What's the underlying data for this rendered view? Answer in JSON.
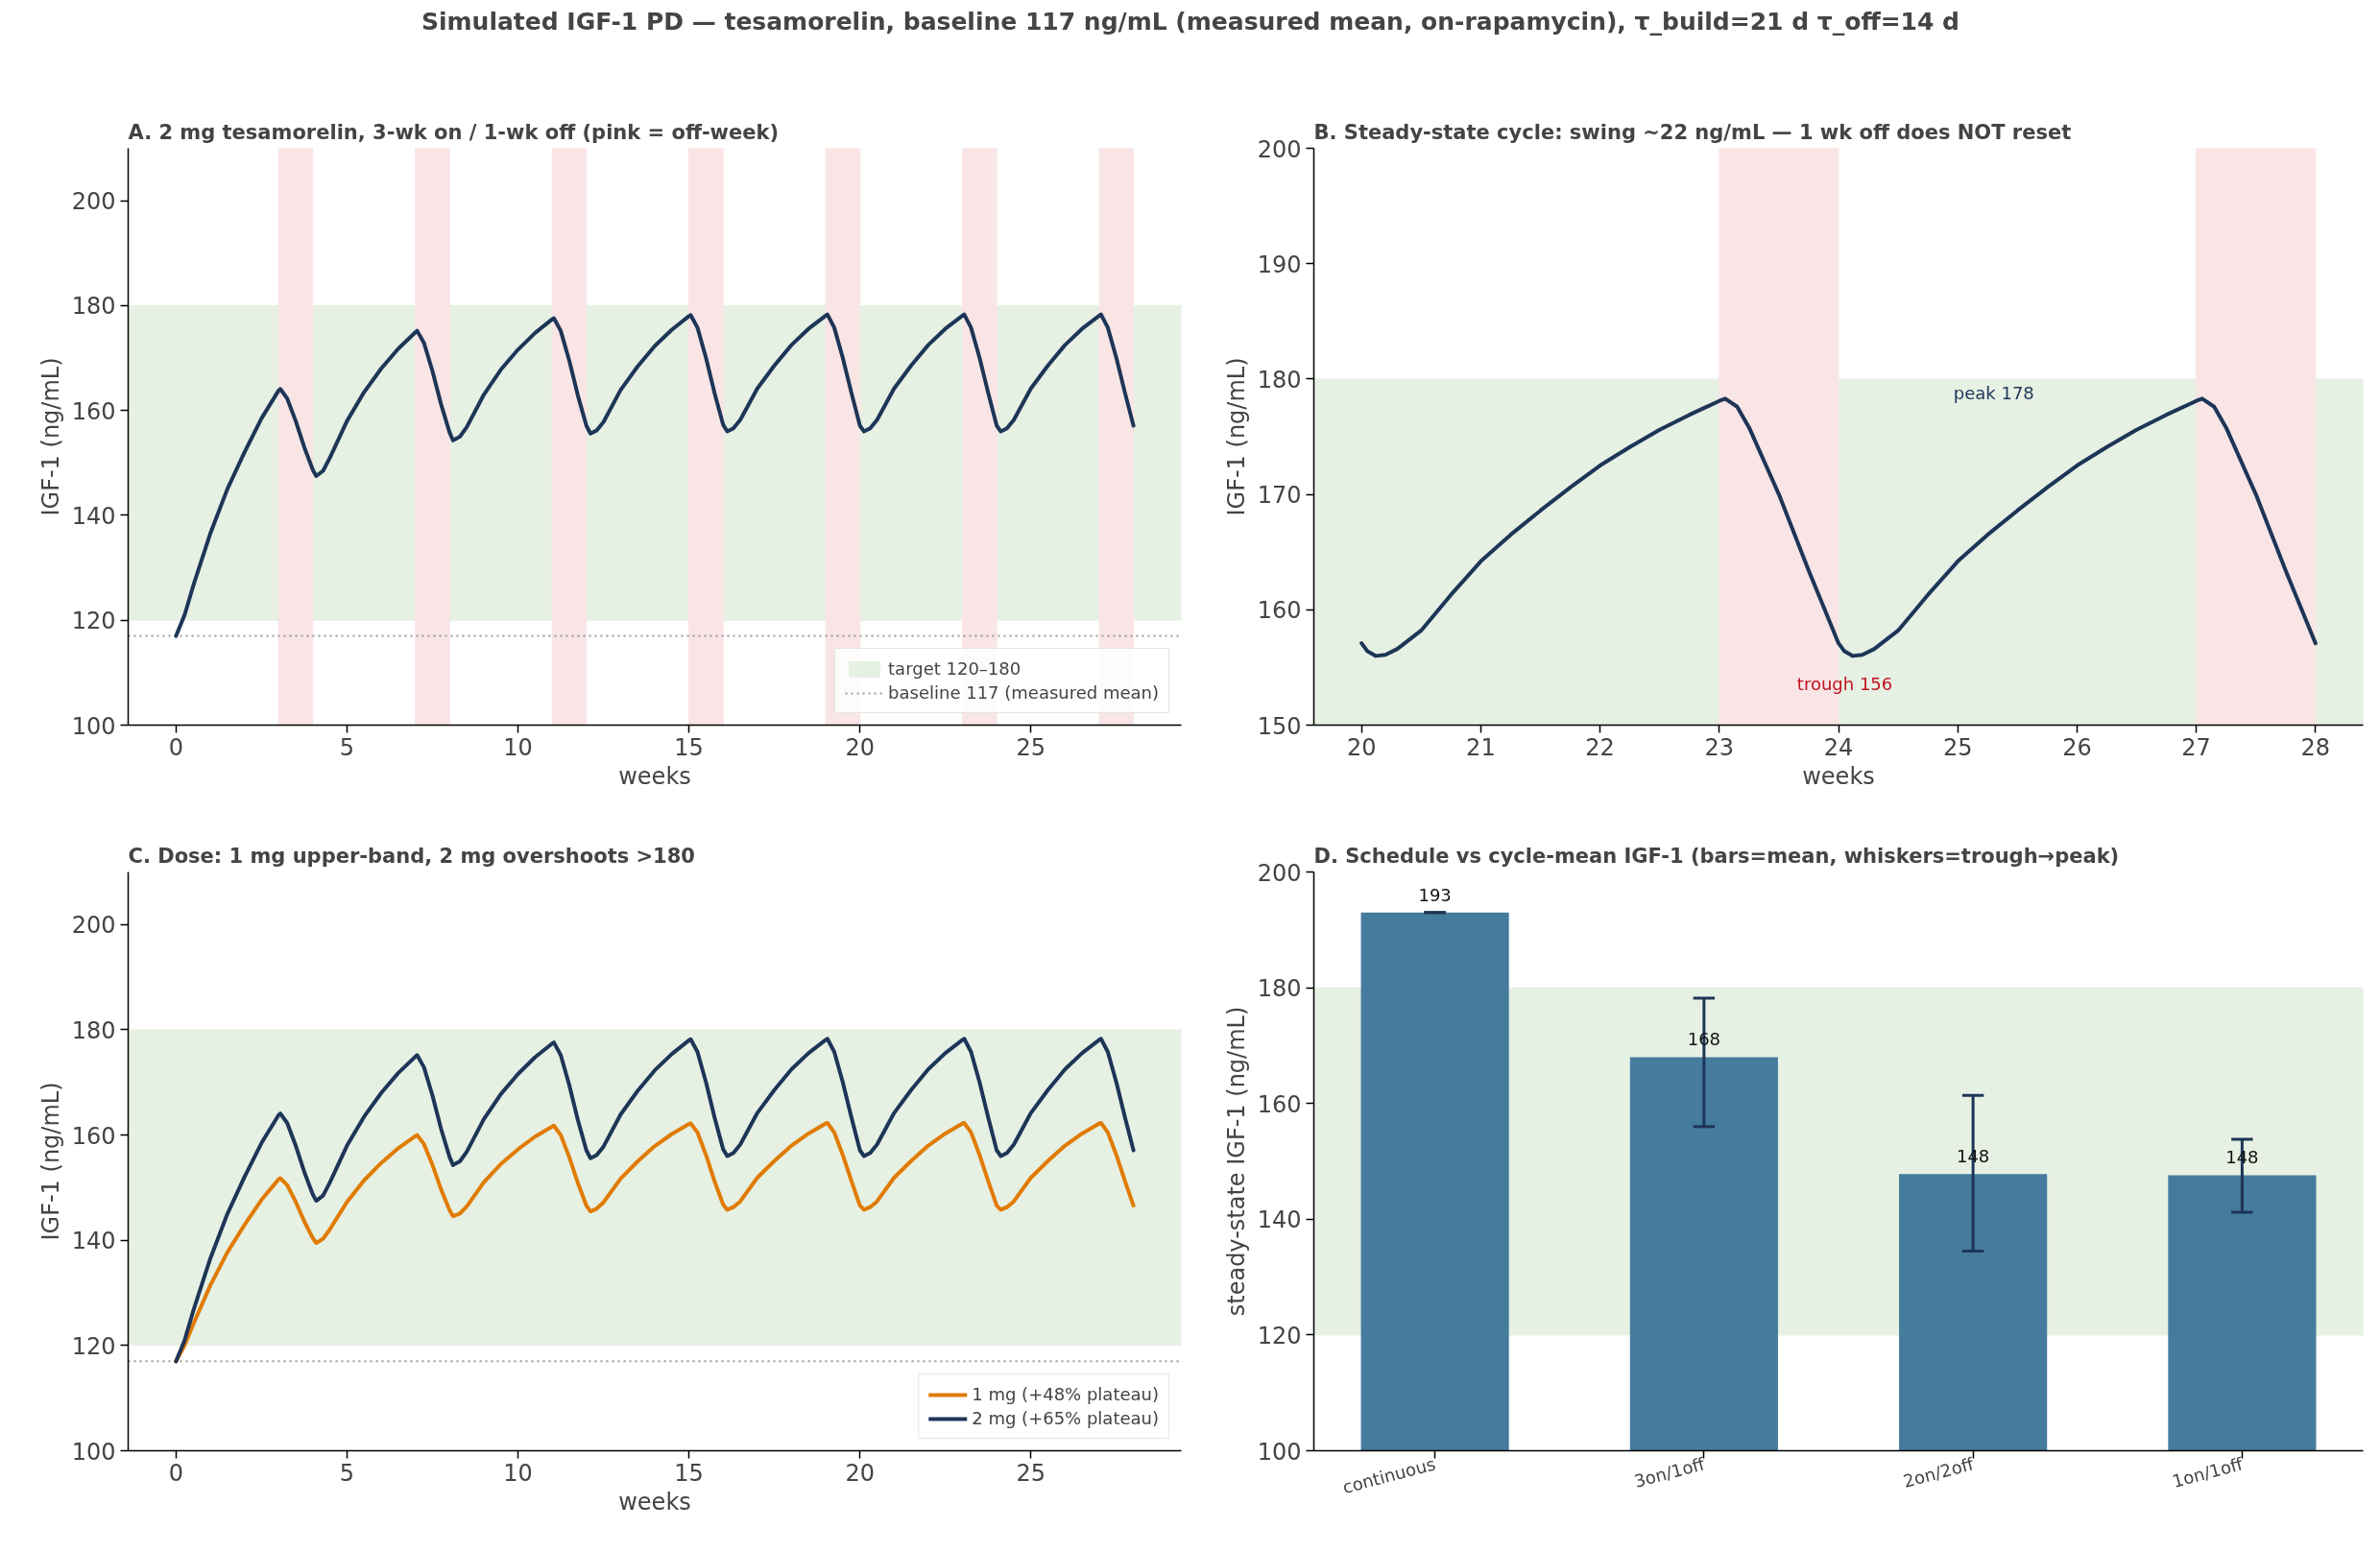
{
  "chart_data": [
    {
      "type": "other",
      "title": "Simulated IGF-1 PD — tesamorelin, baseline 117 ng/mL (measured mean, on-rapamycin), τ_build=21 d τ_off=14 d"
    },
    {
      "type": "line",
      "title": "A. 2 mg tesamorelin, 3-wk on / 1-wk off (pink = off-week)",
      "xlabel": "weeks",
      "ylabel": "IGF-1 (ng/mL)",
      "x": [
        0,
        0.25,
        0.5,
        1,
        1.5,
        2,
        2.5,
        3,
        3.05,
        3.25,
        3.5,
        3.75,
        4,
        4.1,
        4.3,
        4.5,
        5,
        5.5,
        6,
        6.5,
        7,
        7.05,
        7.25,
        7.5,
        7.75,
        8,
        8.1,
        8.3,
        8.5,
        9,
        9.5,
        10,
        10.5,
        11,
        11.05,
        11.25,
        11.5,
        11.75,
        12,
        12.12,
        12.3,
        12.5,
        13,
        13.5,
        14,
        14.5,
        15,
        15.05,
        15.25,
        15.5,
        15.75,
        16,
        16.12,
        16.3,
        16.5,
        17,
        17.5,
        18,
        18.5,
        19,
        19.05,
        19.25,
        19.5,
        19.75,
        20,
        20.12,
        20.3,
        20.5,
        21,
        21.5,
        22,
        22.5,
        23,
        23.05,
        23.25,
        23.5,
        23.75,
        24,
        24.12,
        24.3,
        24.5,
        25,
        25.5,
        26,
        26.5,
        27,
        27.05,
        27.25,
        27.5,
        27.75,
        28
      ],
      "series": [
        {
          "color": "#1d3557",
          "values": [
            117,
            121.0,
            126.5,
            136.5,
            145.0,
            152.0,
            158.5,
            163.8,
            164.1,
            162.3,
            158.0,
            153.0,
            148.7,
            147.5,
            148.5,
            151.0,
            158.0,
            163.5,
            168.0,
            171.8,
            174.9,
            175.2,
            172.9,
            167.5,
            161.2,
            155.8,
            154.3,
            155.0,
            156.8,
            163.0,
            167.8,
            171.6,
            174.8,
            177.4,
            177.6,
            175.2,
            169.5,
            162.9,
            157.1,
            155.6,
            156.2,
            157.8,
            163.9,
            168.4,
            172.3,
            175.4,
            178.0,
            178.2,
            175.8,
            170.0,
            163.3,
            157.3,
            156.0,
            156.6,
            158.2,
            164.2,
            168.6,
            172.5,
            175.6,
            178.1,
            178.3,
            175.8,
            170.0,
            163.4,
            157.1,
            156.0,
            156.6,
            158.2,
            164.2,
            168.6,
            172.5,
            175.6,
            178.1,
            178.3,
            175.8,
            170.0,
            163.4,
            157.1,
            156.0,
            156.6,
            158.2,
            164.2,
            168.6,
            172.5,
            175.6,
            178.1,
            178.3,
            175.8,
            170.0,
            163.4,
            157.1
          ]
        }
      ],
      "xlim": [
        -1.4,
        29.4
      ],
      "ylim": [
        100,
        210
      ],
      "xticks": [
        0,
        5,
        10,
        15,
        20,
        25
      ],
      "yticks": [
        100,
        120,
        140,
        160,
        180,
        200
      ],
      "bands": [
        {
          "axis": "y",
          "from": 120,
          "to": 180,
          "label": "target 120–180",
          "color": "#e6f0e3"
        },
        {
          "axis": "x",
          "from": 3,
          "to": 4,
          "color": "#f9e5e5"
        },
        {
          "axis": "x",
          "from": 7,
          "to": 8,
          "color": "#f9e5e5"
        },
        {
          "axis": "x",
          "from": 11,
          "to": 12,
          "color": "#f9e5e5"
        },
        {
          "axis": "x",
          "from": 15,
          "to": 16,
          "color": "#f9e5e5"
        },
        {
          "axis": "x",
          "from": 19,
          "to": 20,
          "color": "#f9e5e5"
        },
        {
          "axis": "x",
          "from": 23,
          "to": 24,
          "color": "#f9e5e5"
        },
        {
          "axis": "x",
          "from": 27,
          "to": 28,
          "color": "#f9e5e5"
        }
      ],
      "ref_lines": [
        {
          "axis": "y",
          "value": 117,
          "label": "baseline 117 (measured mean)",
          "color": "#999999",
          "line_style": "dotted"
        }
      ],
      "legend": "bottom right"
    },
    {
      "type": "line",
      "title": "B. Steady-state cycle: swing ~22 ng/mL — 1 wk off does NOT reset",
      "xlabel": "weeks",
      "ylabel": "IGF-1 (ng/mL)",
      "x": [
        20,
        20.05,
        20.12,
        20.2,
        20.3,
        20.5,
        20.75,
        21,
        21.25,
        21.5,
        21.75,
        22,
        22.25,
        22.5,
        22.75,
        23,
        23.05,
        23.15,
        23.25,
        23.5,
        23.75,
        24,
        24.05,
        24.12,
        24.2,
        24.3,
        24.5,
        24.75,
        25,
        25.25,
        25.5,
        25.75,
        26,
        26.25,
        26.5,
        26.75,
        27,
        27.05,
        27.15,
        27.25,
        27.5,
        27.75,
        28
      ],
      "series": [
        {
          "color": "#1d3557",
          "values": [
            157.1,
            156.4,
            156.0,
            156.1,
            156.6,
            158.2,
            161.3,
            164.2,
            166.5,
            168.6,
            170.6,
            172.5,
            174.1,
            175.6,
            176.9,
            178.1,
            178.3,
            177.6,
            175.8,
            170.0,
            163.4,
            157.1,
            156.4,
            156.0,
            156.1,
            156.6,
            158.2,
            161.3,
            164.2,
            166.5,
            168.6,
            170.6,
            172.5,
            174.1,
            175.6,
            176.9,
            178.1,
            178.3,
            177.6,
            175.8,
            170.0,
            163.4,
            157.1
          ]
        }
      ],
      "xlim": [
        19.6,
        28.4
      ],
      "ylim": [
        150,
        200
      ],
      "xticks": [
        20,
        21,
        22,
        23,
        24,
        25,
        26,
        27,
        28
      ],
      "yticks": [
        150,
        160,
        170,
        180,
        190,
        200
      ],
      "bands": [
        {
          "axis": "y",
          "from": 120,
          "to": 180,
          "color": "#e6f0e3"
        },
        {
          "axis": "x",
          "from": 23,
          "to": 24,
          "color": "#f9e5e5"
        },
        {
          "axis": "x",
          "from": 27,
          "to": 28,
          "color": "#f9e5e5"
        }
      ],
      "annotations": [
        "peak 178",
        "trough 156"
      ]
    },
    {
      "type": "line",
      "title": "C. Dose: 1 mg upper-band, 2 mg overshoots >180",
      "xlabel": "weeks",
      "ylabel": "IGF-1 (ng/mL)",
      "x": [
        0,
        0.25,
        0.5,
        1,
        1.5,
        2,
        2.5,
        3,
        3.05,
        3.25,
        3.5,
        3.75,
        4,
        4.1,
        4.3,
        4.5,
        5,
        5.5,
        6,
        6.5,
        7,
        7.05,
        7.25,
        7.5,
        7.75,
        8,
        8.1,
        8.3,
        8.5,
        9,
        9.5,
        10,
        10.5,
        11,
        11.05,
        11.25,
        11.5,
        11.75,
        12,
        12.12,
        12.3,
        12.5,
        13,
        13.5,
        14,
        14.5,
        15,
        15.05,
        15.25,
        15.5,
        15.75,
        16,
        16.12,
        16.3,
        16.5,
        17,
        17.5,
        18,
        18.5,
        19,
        19.05,
        19.25,
        19.5,
        19.75,
        20,
        20.12,
        20.3,
        20.5,
        21,
        21.5,
        22,
        22.5,
        23,
        23.05,
        23.25,
        23.5,
        23.75,
        24,
        24.12,
        24.3,
        24.5,
        25,
        25.5,
        26,
        26.5,
        27,
        27.05,
        27.25,
        27.5,
        27.75,
        28
      ],
      "series": [
        {
          "name": "1 mg (+48% plateau)",
          "color": "#e07b00",
          "values": [
            117.0,
            120.0,
            124.0,
            131.4,
            137.7,
            142.9,
            147.7,
            151.6,
            151.8,
            150.5,
            147.3,
            143.6,
            140.4,
            139.5,
            140.3,
            142.1,
            147.3,
            151.4,
            154.7,
            157.5,
            159.8,
            160.0,
            158.3,
            154.3,
            149.7,
            145.7,
            144.6,
            145.1,
            146.4,
            151.0,
            154.5,
            157.3,
            159.7,
            161.6,
            161.8,
            160.0,
            155.8,
            150.9,
            146.6,
            145.5,
            146.0,
            147.2,
            151.7,
            155.0,
            157.9,
            160.2,
            162.1,
            162.2,
            160.5,
            156.2,
            151.2,
            146.8,
            145.8,
            146.3,
            147.4,
            151.9,
            155.1,
            158.0,
            160.3,
            162.2,
            162.3,
            160.5,
            156.2,
            151.3,
            146.6,
            145.8,
            146.3,
            147.4,
            151.9,
            155.1,
            158.0,
            160.3,
            162.2,
            162.3,
            160.5,
            156.2,
            151.3,
            146.6,
            145.8,
            146.3,
            147.4,
            151.9,
            155.1,
            158.0,
            160.3,
            162.2,
            162.3,
            160.5,
            156.2,
            151.3,
            146.6
          ]
        },
        {
          "name": "2 mg (+65% plateau)",
          "color": "#1d3557",
          "values": [
            117,
            121.0,
            126.5,
            136.5,
            145.0,
            152.0,
            158.5,
            163.8,
            164.1,
            162.3,
            158.0,
            153.0,
            148.7,
            147.5,
            148.5,
            151.0,
            158.0,
            163.5,
            168.0,
            171.8,
            174.9,
            175.2,
            172.9,
            167.5,
            161.2,
            155.8,
            154.3,
            155.0,
            156.8,
            163.0,
            167.8,
            171.6,
            174.8,
            177.4,
            177.6,
            175.2,
            169.5,
            162.9,
            157.1,
            155.6,
            156.2,
            157.8,
            163.9,
            168.4,
            172.3,
            175.4,
            178.0,
            178.2,
            175.8,
            170.0,
            163.3,
            157.3,
            156.0,
            156.6,
            158.2,
            164.2,
            168.6,
            172.5,
            175.6,
            178.1,
            178.3,
            175.8,
            170.0,
            163.4,
            157.1,
            156.0,
            156.6,
            158.2,
            164.2,
            168.6,
            172.5,
            175.6,
            178.1,
            178.3,
            175.8,
            170.0,
            163.4,
            157.1,
            156.0,
            156.6,
            158.2,
            164.2,
            168.6,
            172.5,
            175.6,
            178.1,
            178.3,
            175.8,
            170.0,
            163.4,
            157.1
          ]
        }
      ],
      "xlim": [
        -1.4,
        29.4
      ],
      "ylim": [
        100,
        210
      ],
      "xticks": [
        0,
        5,
        10,
        15,
        20,
        25
      ],
      "yticks": [
        100,
        120,
        140,
        160,
        180,
        200
      ],
      "bands": [
        {
          "axis": "y",
          "from": 120,
          "to": 180,
          "color": "#e6f0e3"
        }
      ],
      "ref_lines": [
        {
          "axis": "y",
          "value": 117,
          "color": "#999999",
          "line_style": "dotted"
        }
      ],
      "legend": "bottom right"
    },
    {
      "type": "bar",
      "title": "D. Schedule vs cycle-mean IGF-1 (bars=mean, whiskers=trough→peak)",
      "ylabel": "steady-state IGF-1 (ng/mL)",
      "categories": [
        "continuous",
        "3on/1off",
        "2on/2off",
        "1on/1off"
      ],
      "values": [
        193,
        168,
        147.8,
        147.6
      ],
      "color": "#457b9d",
      "errors": [
        [
          193,
          193
        ],
        [
          156,
          178.2
        ],
        [
          134.5,
          161.4
        ],
        [
          141.2,
          153.8
        ]
      ],
      "value_labels": [
        "193",
        "168",
        "148",
        "148"
      ],
      "ylim": [
        100,
        200
      ],
      "yticks": [
        100,
        120,
        140,
        160,
        180,
        200
      ],
      "bands": [
        {
          "axis": "y",
          "from": 120,
          "to": 180,
          "color": "#e6f0e3"
        }
      ]
    }
  ]
}
